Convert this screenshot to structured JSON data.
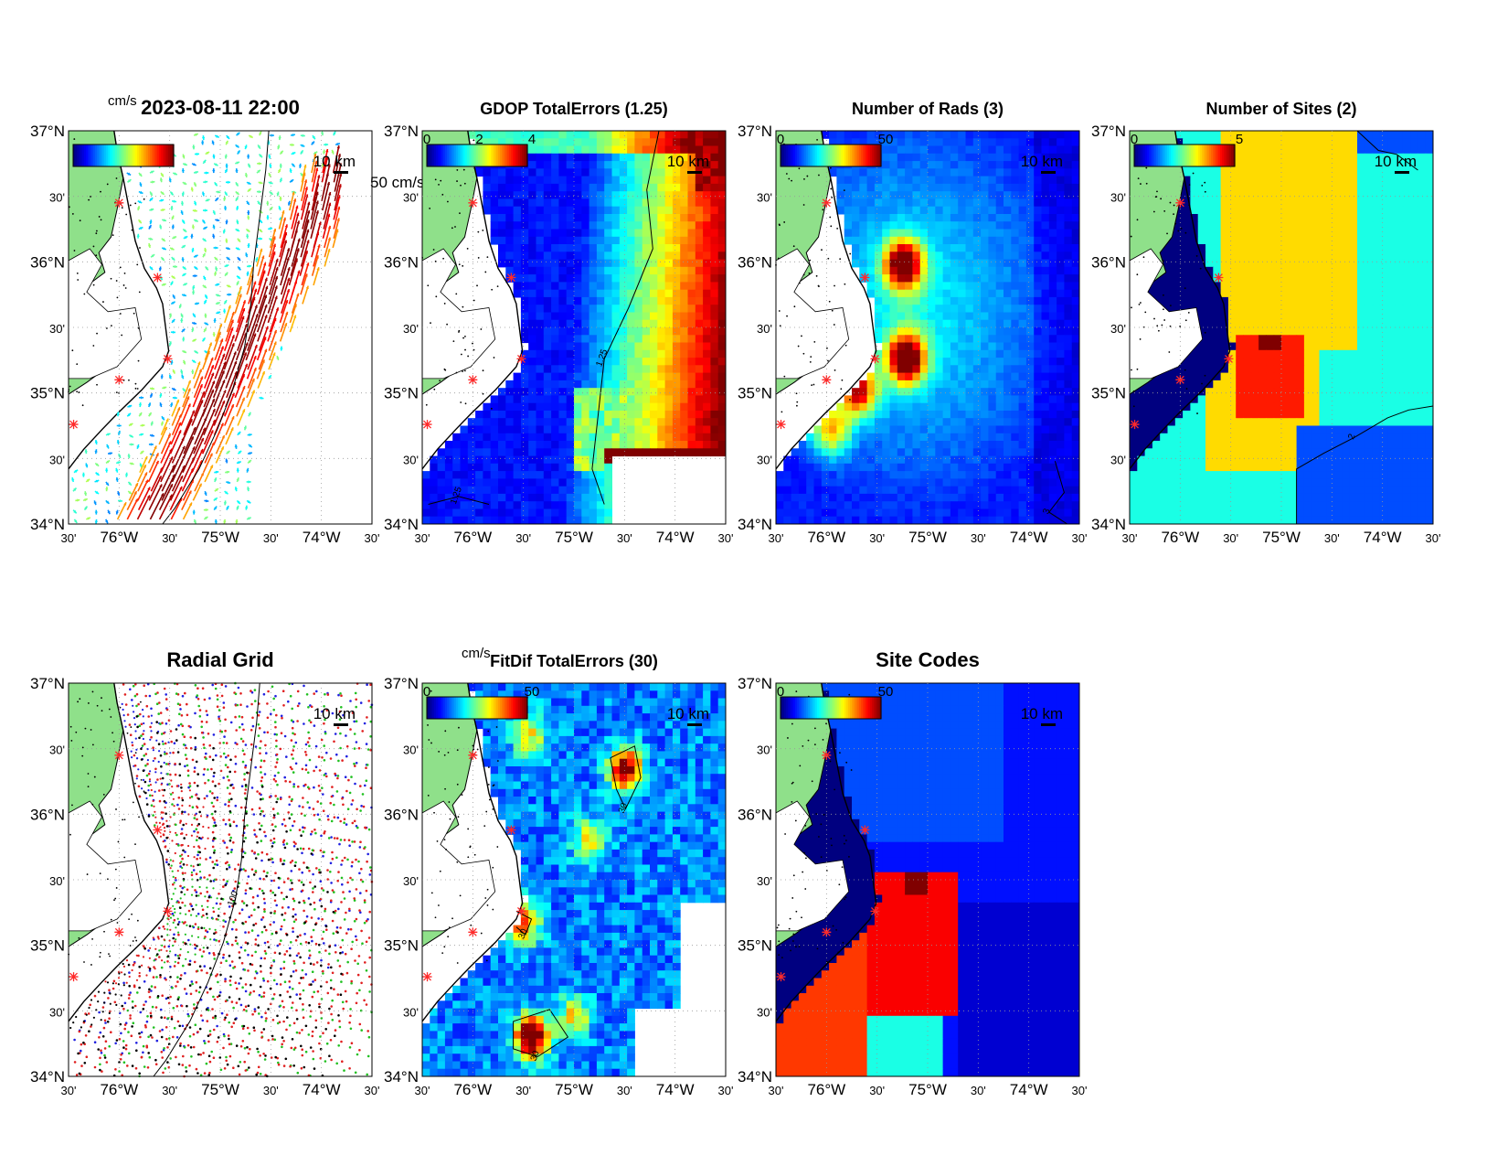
{
  "timestamp": "2023-08-11 22:00",
  "lat_labels": [
    "37°N",
    "30'",
    "36°N",
    "30'",
    "35°N",
    "30'",
    "34°N"
  ],
  "lon_labels": [
    "30'",
    "76°W",
    "30'",
    "75°W",
    "30'",
    "74°W",
    "30'"
  ],
  "scale_km": "10 km",
  "colors": {
    "land": "#8fe08a",
    "coast": "#000000",
    "site_marker": "#ff2a2a"
  },
  "panels": [
    {
      "id": "currents",
      "title": "2023-08-11 22:00",
      "cbar_unit": "cm/s",
      "cbar_ticks": [],
      "vector_scale": "50 cm/s"
    },
    {
      "id": "gdop",
      "title": "GDOP TotalErrors (1.25)",
      "cbar_unit": "",
      "cbar_ticks": [
        "0",
        "2",
        "4"
      ],
      "contour_labels": [
        "1.25",
        "1.25",
        "1.25",
        "1.25"
      ]
    },
    {
      "id": "nrads",
      "title": "Number of Rads (3)",
      "cbar_unit": "",
      "cbar_ticks": [
        "0",
        "50"
      ],
      "contour_labels": [
        "3"
      ]
    },
    {
      "id": "nsites",
      "title": "Number of Sites (2)",
      "cbar_unit": "",
      "cbar_ticks": [
        "0",
        "5"
      ],
      "contour_labels": [
        "2",
        "2",
        "2"
      ]
    },
    {
      "id": "radgrid",
      "title": "Radial Grid",
      "cbar_unit": "",
      "cbar_ticks": [],
      "contour_labels": [
        "100",
        "100"
      ]
    },
    {
      "id": "fitdif",
      "title": "FitDif TotalErrors (30)",
      "cbar_unit": "cm/s",
      "cbar_ticks": [
        "0",
        "50"
      ],
      "contour_labels": [
        "30",
        "30",
        "30",
        "30",
        "30",
        "30"
      ]
    },
    {
      "id": "sitecodes",
      "title": "Site Codes",
      "cbar_unit": "",
      "cbar_ticks": [
        "0",
        "50"
      ]
    }
  ],
  "chart_data": {
    "type": "heatmap",
    "description_units": "map panels, lon -76.5 to -73.5, lat 34 to 37",
    "xlim": [
      -76.5,
      -73.5
    ],
    "ylim": [
      34.0,
      37.0
    ],
    "radar_sites": [
      {
        "lon": -76.0,
        "lat": 36.45
      },
      {
        "lon": -75.62,
        "lat": 35.88
      },
      {
        "lon": -75.52,
        "lat": 35.26
      },
      {
        "lon": -76.0,
        "lat": 35.1
      },
      {
        "lon": -76.45,
        "lat": 34.76
      }
    ],
    "colormap": "jet"
  }
}
